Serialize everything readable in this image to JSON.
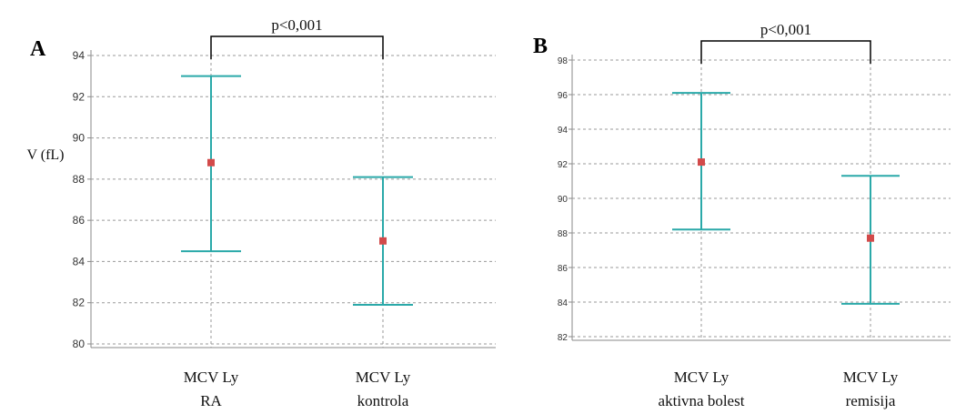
{
  "colors": {
    "errorbar": "#2aa9a9",
    "mean": "#d24a4a",
    "grid": "#9a9a9a",
    "axis": "#8a8a8a",
    "bracket": "#000000"
  },
  "chart_data": [
    {
      "type": "errorbar",
      "panel_label": "A",
      "ylabel": "V (fL)",
      "ylim": [
        80,
        94
      ],
      "yticks": [
        80,
        82,
        84,
        86,
        88,
        90,
        92,
        94
      ],
      "categories": [
        {
          "line1": "MCV Ly",
          "line2": "RA"
        },
        {
          "line1": "MCV Ly",
          "line2": "kontrola"
        }
      ],
      "series": [
        {
          "mean": 88.8,
          "low": 84.5,
          "high": 93.0
        },
        {
          "mean": 85.0,
          "low": 81.9,
          "high": 88.1
        }
      ],
      "significance": "p<0,001",
      "grid": true
    },
    {
      "type": "errorbar",
      "panel_label": "B",
      "ylabel": "",
      "ylim": [
        82,
        98
      ],
      "yticks": [
        82,
        84,
        86,
        88,
        90,
        92,
        94,
        96,
        98
      ],
      "categories": [
        {
          "line1": "MCV Ly",
          "line2": "aktivna bolest"
        },
        {
          "line1": "MCV Ly",
          "line2": "remisija"
        }
      ],
      "series": [
        {
          "mean": 92.1,
          "low": 88.2,
          "high": 96.1
        },
        {
          "mean": 87.7,
          "low": 83.9,
          "high": 91.3
        }
      ],
      "significance": "p<0,001",
      "grid": true
    }
  ]
}
